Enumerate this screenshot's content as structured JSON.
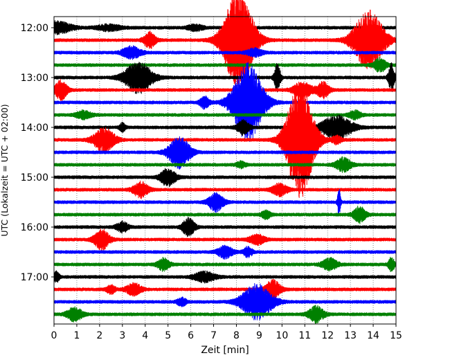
{
  "chart_data": {
    "type": "line",
    "title": "",
    "xlabel": "Zeit  [min]",
    "ylabel": "UTC (Lokalzeit = UTC + 02:00)",
    "xlim": [
      0,
      15
    ],
    "x_ticks": [
      "0",
      "1",
      "2",
      "3",
      "4",
      "5",
      "6",
      "7",
      "8",
      "9",
      "10",
      "11",
      "12",
      "13",
      "14",
      "15"
    ],
    "y_tick_labels": [
      "12:00",
      "13:00",
      "14:00",
      "15:00",
      "16:00",
      "17:00"
    ],
    "grid": "vertical dotted",
    "colors": [
      "#000000",
      "#ff0000",
      "#0000ff",
      "#008000"
    ],
    "trace_minutes_per_line": 15,
    "start_time": "12:00",
    "traces": [
      {
        "start": "12:00",
        "color": "#000000",
        "events": [
          [
            0.1,
            1.0,
            0.6
          ],
          [
            2.4,
            0.8,
            0.3
          ],
          [
            6.2,
            0.5,
            0.3
          ]
        ]
      },
      {
        "start": "12:15",
        "color": "#ff0000",
        "events": [
          [
            8.1,
            1.0,
            5.0
          ],
          [
            13.8,
            1.0,
            3.0
          ],
          [
            4.2,
            0.4,
            0.8
          ]
        ]
      },
      {
        "start": "12:30",
        "color": "#0000ff",
        "events": [
          [
            3.4,
            0.6,
            0.6
          ],
          [
            8.8,
            0.5,
            0.4
          ]
        ]
      },
      {
        "start": "12:45",
        "color": "#008000",
        "events": [
          [
            14.3,
            0.4,
            0.7
          ]
        ]
      },
      {
        "start": "13:00",
        "color": "#000000",
        "events": [
          [
            3.7,
            0.9,
            1.6
          ],
          [
            9.8,
            0.2,
            1.4
          ],
          [
            14.8,
            0.2,
            1.4
          ]
        ]
      },
      {
        "start": "13:15",
        "color": "#ff0000",
        "events": [
          [
            0.3,
            0.4,
            1.0
          ],
          [
            10.9,
            0.6,
            0.8
          ],
          [
            11.8,
            0.4,
            0.8
          ]
        ]
      },
      {
        "start": "13:30",
        "color": "#0000ff",
        "events": [
          [
            8.5,
            1.0,
            4.0
          ],
          [
            6.6,
            0.3,
            0.6
          ]
        ]
      },
      {
        "start": "13:45",
        "color": "#008000",
        "events": [
          [
            1.3,
            0.5,
            0.4
          ],
          [
            13.2,
            0.4,
            0.4
          ]
        ]
      },
      {
        "start": "14:00",
        "color": "#000000",
        "events": [
          [
            12.4,
            1.0,
            1.2
          ],
          [
            8.3,
            0.4,
            0.7
          ],
          [
            3.0,
            0.2,
            0.4
          ]
        ]
      },
      {
        "start": "14:15",
        "color": "#ff0000",
        "events": [
          [
            10.8,
            0.9,
            6.0
          ],
          [
            2.2,
            0.7,
            1.2
          ],
          [
            12.4,
            0.3,
            0.4
          ]
        ]
      },
      {
        "start": "14:30",
        "color": "#0000ff",
        "events": [
          [
            5.5,
            0.7,
            1.6
          ]
        ]
      },
      {
        "start": "14:45",
        "color": "#008000",
        "events": [
          [
            12.7,
            0.5,
            0.7
          ],
          [
            8.2,
            0.3,
            0.3
          ]
        ]
      },
      {
        "start": "15:00",
        "color": "#000000",
        "events": [
          [
            5.0,
            0.5,
            0.9
          ]
        ]
      },
      {
        "start": "15:15",
        "color": "#ff0000",
        "events": [
          [
            3.8,
            0.5,
            0.8
          ],
          [
            9.9,
            0.5,
            0.6
          ]
        ]
      },
      {
        "start": "15:30",
        "color": "#0000ff",
        "events": [
          [
            7.1,
            0.5,
            0.9
          ],
          [
            12.5,
            0.1,
            1.4
          ]
        ]
      },
      {
        "start": "15:45",
        "color": "#008000",
        "events": [
          [
            13.4,
            0.4,
            0.8
          ],
          [
            9.3,
            0.3,
            0.4
          ]
        ]
      },
      {
        "start": "16:00",
        "color": "#000000",
        "events": [
          [
            5.9,
            0.4,
            0.9
          ],
          [
            3.0,
            0.4,
            0.5
          ]
        ]
      },
      {
        "start": "16:15",
        "color": "#ff0000",
        "events": [
          [
            2.1,
            0.5,
            1.0
          ],
          [
            8.9,
            0.5,
            0.5
          ]
        ]
      },
      {
        "start": "16:30",
        "color": "#0000ff",
        "events": [
          [
            7.5,
            0.5,
            0.6
          ],
          [
            8.5,
            0.3,
            0.5
          ]
        ]
      },
      {
        "start": "16:45",
        "color": "#008000",
        "events": [
          [
            4.8,
            0.4,
            0.6
          ],
          [
            12.1,
            0.5,
            0.6
          ],
          [
            14.8,
            0.2,
            0.7
          ]
        ]
      },
      {
        "start": "17:00",
        "color": "#000000",
        "events": [
          [
            6.6,
            0.7,
            0.5
          ],
          [
            0.1,
            0.2,
            0.5
          ]
        ]
      },
      {
        "start": "17:15",
        "color": "#ff0000",
        "events": [
          [
            9.6,
            0.5,
            0.9
          ],
          [
            3.5,
            0.5,
            0.6
          ],
          [
            2.5,
            0.3,
            0.4
          ]
        ]
      },
      {
        "start": "17:30",
        "color": "#0000ff",
        "events": [
          [
            8.9,
            1.0,
            1.8
          ],
          [
            5.6,
            0.3,
            0.4
          ]
        ]
      },
      {
        "start": "17:45",
        "color": "#008000",
        "events": [
          [
            0.9,
            0.5,
            0.7
          ],
          [
            11.5,
            0.5,
            0.8
          ]
        ]
      }
    ]
  }
}
